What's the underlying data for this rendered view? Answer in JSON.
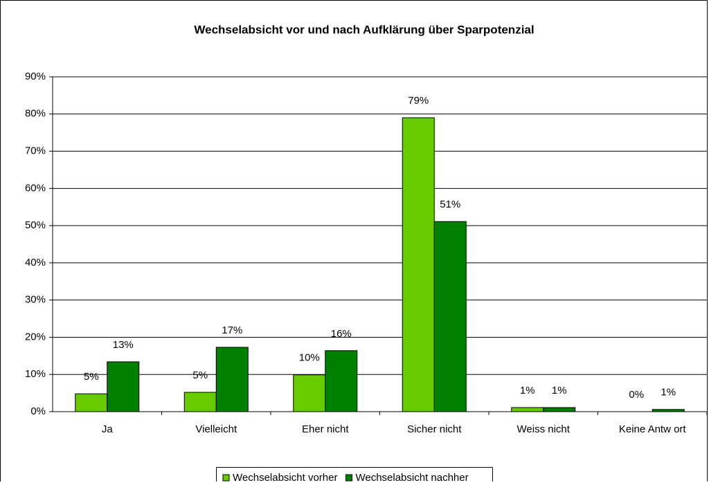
{
  "chart_data": {
    "type": "bar",
    "title": "Wechselabsicht vor und nach Aufklärung über Sparpotenzial",
    "categories": [
      "Ja",
      "Vielleicht",
      "Eher nicht",
      "Sicher nicht",
      "Weiss nicht",
      "Keine Antw ort"
    ],
    "series": [
      {
        "name": "Wechselabsicht vorher",
        "color": "#66cc00",
        "values": [
          4.8,
          5.2,
          9.9,
          79.0,
          1.1,
          0
        ],
        "value_labels": [
          "5%",
          "5%",
          "10%",
          "79%",
          "1%",
          "0%"
        ]
      },
      {
        "name": "Wechselabsicht nachher",
        "color": "#008000",
        "values": [
          13.4,
          17.3,
          16.4,
          51.1,
          1.1,
          0.6
        ],
        "value_labels": [
          "13%",
          "17%",
          "16%",
          "51%",
          "1%",
          "1%"
        ]
      }
    ],
    "ylim": [
      0,
      90
    ],
    "yticks": [
      {
        "value": 0,
        "label": "0%"
      },
      {
        "value": 10,
        "label": "10%"
      },
      {
        "value": 20,
        "label": "20%"
      },
      {
        "value": 30,
        "label": "30%"
      },
      {
        "value": 40,
        "label": "40%"
      },
      {
        "value": 50,
        "label": "50%"
      },
      {
        "value": 60,
        "label": "60%"
      },
      {
        "value": 70,
        "label": "70%"
      },
      {
        "value": 80,
        "label": "80%"
      },
      {
        "value": 90,
        "label": "90%"
      }
    ],
    "grid": true,
    "legend": "bottom"
  }
}
